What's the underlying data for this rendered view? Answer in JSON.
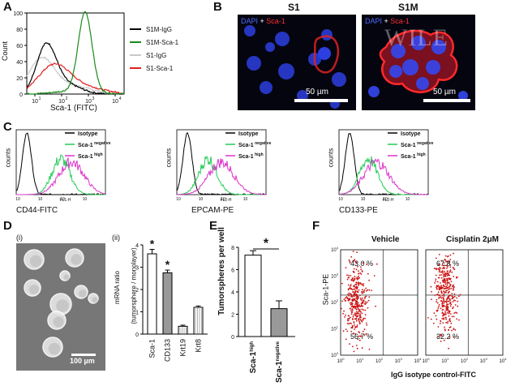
{
  "panels": {
    "A": "A",
    "B": "B",
    "C": "C",
    "D": "D",
    "E": "E",
    "F": "F"
  },
  "panel_a": {
    "ylabel": "Count",
    "xlabel": "Sca-1 (FITC)",
    "yticks": [
      "0",
      "20",
      "40",
      "60",
      "80",
      "100"
    ],
    "xticks": [
      "10",
      "10",
      "10",
      "10"
    ],
    "xtick_exps": [
      "1",
      "2",
      "3",
      "4"
    ],
    "legend": [
      {
        "label": "S1M-IgG",
        "color": "#000000"
      },
      {
        "label": "S1M-Sca-1",
        "color": "#1a8a1a"
      },
      {
        "label": "S1-IgG",
        "color": "#c8c8c8"
      },
      {
        "label": "S1-Sca-1",
        "color": "#e02020"
      }
    ]
  },
  "panel_b": {
    "s1_title": "S1",
    "s1m_title": "S1M",
    "stain_dapi": "DAPI",
    "stain_plus": " + ",
    "stain_sca": "Sca-1",
    "scalebar": "50 µm",
    "watermark": "WILE"
  },
  "panel_c": {
    "plots": [
      {
        "xlabel": "CD44-FITC",
        "fl": "FL1-H"
      },
      {
        "xlabel": "EPCAM-PE",
        "fl": "FL2-H"
      },
      {
        "xlabel": "CD133-PE",
        "fl": "FL2-H"
      }
    ],
    "ylabel": "counts",
    "legend_isotype": "Isotype",
    "legend_neg": "Sca-1",
    "legend_neg_sup": "negative",
    "legend_high": "Sca-1",
    "legend_high_sup": "high",
    "colors": {
      "isotype": "#000000",
      "negative": "#22cc55",
      "high": "#dd33cc"
    }
  },
  "panel_d": {
    "sub_i": "(i)",
    "sub_ii": "(ii)",
    "scalebar": "100 µm",
    "ylabel_1": "mRNA ratio",
    "ylabel_2": "(tumorsphere / monolayer)",
    "yticks": [
      "0",
      "1",
      "2",
      "3",
      "4"
    ],
    "star": "*",
    "chart_data": {
      "type": "bar",
      "categories": [
        "Sca-1",
        "CD133",
        "Krt19",
        "Krt8"
      ],
      "values": [
        3.6,
        2.75,
        0.35,
        1.2
      ],
      "errors": [
        0.2,
        0.12,
        0.05,
        0.06
      ],
      "significant": [
        true,
        true,
        false,
        false
      ],
      "ylim": [
        0,
        4
      ]
    }
  },
  "panel_e": {
    "ylabel": "Tumorspheres per well",
    "yticks": [
      "0",
      "2",
      "4",
      "6",
      "8"
    ],
    "star": "*",
    "cat_main": [
      "Sca-1",
      "Sca-1"
    ],
    "cat_sup": [
      "high",
      "negative"
    ],
    "chart_data": {
      "type": "bar",
      "categories": [
        "Sca-1 high",
        "Sca-1 negative"
      ],
      "values": [
        7.3,
        2.5
      ],
      "errors": [
        0.4,
        0.7
      ],
      "ylim": [
        0,
        8
      ]
    }
  },
  "panel_f": {
    "vehicle": "Vehicle",
    "cisplatin": "Cisplatin 2μM",
    "ylabel": "Sca-1-PE",
    "xlabel": "IgG isotype control-FITC",
    "tick": "10",
    "tick_exps": [
      "0",
      "1",
      "2",
      "3",
      "4"
    ],
    "vehicle_upper": "43.0 %",
    "vehicle_lower": "56.7 %",
    "cis_upper": "67.8 %",
    "cis_lower": "32.2 %",
    "dot_color": "#cc1111"
  }
}
